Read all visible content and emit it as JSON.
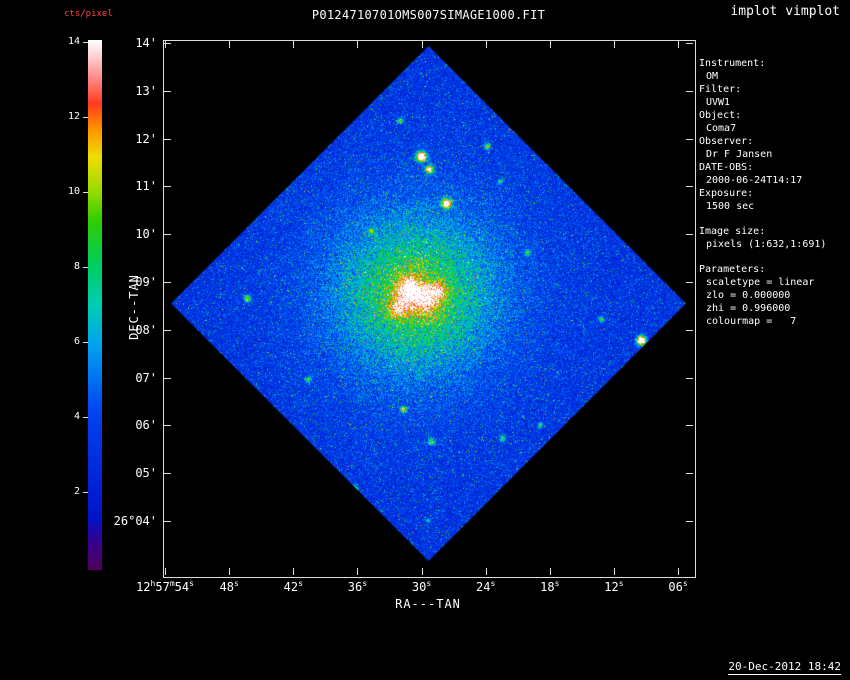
{
  "app": {
    "title": "implot vimplot",
    "timestamp": "20-Dec-2012 18:42"
  },
  "plot": {
    "title": "P0124710701OMS007SIMAGE1000.FIT",
    "x_axis": {
      "label": "RA---TAN",
      "ticks": [
        "12^h^57^m^54^s",
        "48^s",
        "42^s",
        "36^s",
        "30^s",
        "24^s",
        "18^s",
        "12^s",
        "06^s"
      ]
    },
    "y_axis": {
      "label": "DEC--TAN",
      "ticks": [
        "14'",
        "13'",
        "12'",
        "11'",
        "10'",
        "09'",
        "08'",
        "07'",
        "06'",
        "05'",
        "26°04'"
      ]
    }
  },
  "colorbar": {
    "label": "cts/pixel",
    "ticks": [
      "14",
      "12",
      "10",
      "8",
      "6",
      "4",
      "2"
    ],
    "gradient_stops": [
      {
        "t": 0.0,
        "color": "#50005a"
      },
      {
        "t": 0.05,
        "color": "#38008c"
      },
      {
        "t": 0.1,
        "color": "#0014c8"
      },
      {
        "t": 0.3,
        "color": "#0044f0"
      },
      {
        "t": 0.42,
        "color": "#00a0f0"
      },
      {
        "t": 0.5,
        "color": "#00cdb4"
      },
      {
        "t": 0.58,
        "color": "#00cd5a"
      },
      {
        "t": 0.66,
        "color": "#32cd00"
      },
      {
        "t": 0.72,
        "color": "#a0dc00"
      },
      {
        "t": 0.78,
        "color": "#f0dc00"
      },
      {
        "t": 0.83,
        "color": "#ff9600"
      },
      {
        "t": 0.88,
        "color": "#ff3c1e"
      },
      {
        "t": 0.93,
        "color": "#ff8c8c"
      },
      {
        "t": 0.97,
        "color": "#ffd2d2"
      },
      {
        "t": 1.0,
        "color": "#ffffff"
      }
    ]
  },
  "info_panel": {
    "items": [
      {
        "label": "Instrument:",
        "value": "OM"
      },
      {
        "label": "Filter:",
        "value": "UVW1"
      },
      {
        "label": "Object:",
        "value": "Coma7"
      },
      {
        "label": "Observer:",
        "value": "Dr F Jansen"
      },
      {
        "label": "DATE-OBS:",
        "value": "2000-06-24T14:17"
      },
      {
        "label": "Exposure:",
        "value": "1500 sec"
      }
    ],
    "image_size": {
      "label": "Image size:",
      "value": "pixels (1:632,1:691)"
    },
    "parameters": {
      "label": "Parameters:",
      "lines": [
        "scaletype = linear",
        "zlo = 0.000000",
        "zhi = 0.996000",
        "colourmap =   7"
      ]
    }
  },
  "colors": {
    "background": "#000000",
    "foreground": "#ffffff",
    "units_label": "#ff4040",
    "frame": "#dcdcdc"
  }
}
